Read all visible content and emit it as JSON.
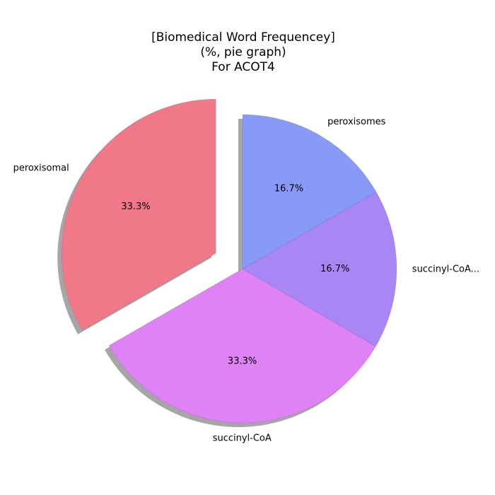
{
  "chart_data": {
    "type": "pie",
    "title_lines": [
      "[Biomedical Word Frequencey]",
      "(%, pie graph)",
      "For ACOT4"
    ],
    "start_angle_deg": 90,
    "direction": "counterclockwise",
    "shadow": true,
    "slices": [
      {
        "label": "peroxisomal",
        "value": 33.3,
        "pct_label": "33.3%",
        "color": "#f07888",
        "exploded": true
      },
      {
        "label": "succinyl-CoA",
        "value": 33.3,
        "pct_label": "33.3%",
        "color": "#de82f5",
        "exploded": false
      },
      {
        "label": "succinyl-CoA...",
        "value": 16.7,
        "pct_label": "16.7%",
        "color": "#aa86f5",
        "exploded": false
      },
      {
        "label": "peroxisomes",
        "value": 16.7,
        "pct_label": "16.7%",
        "color": "#879af7",
        "exploded": false
      }
    ]
  }
}
